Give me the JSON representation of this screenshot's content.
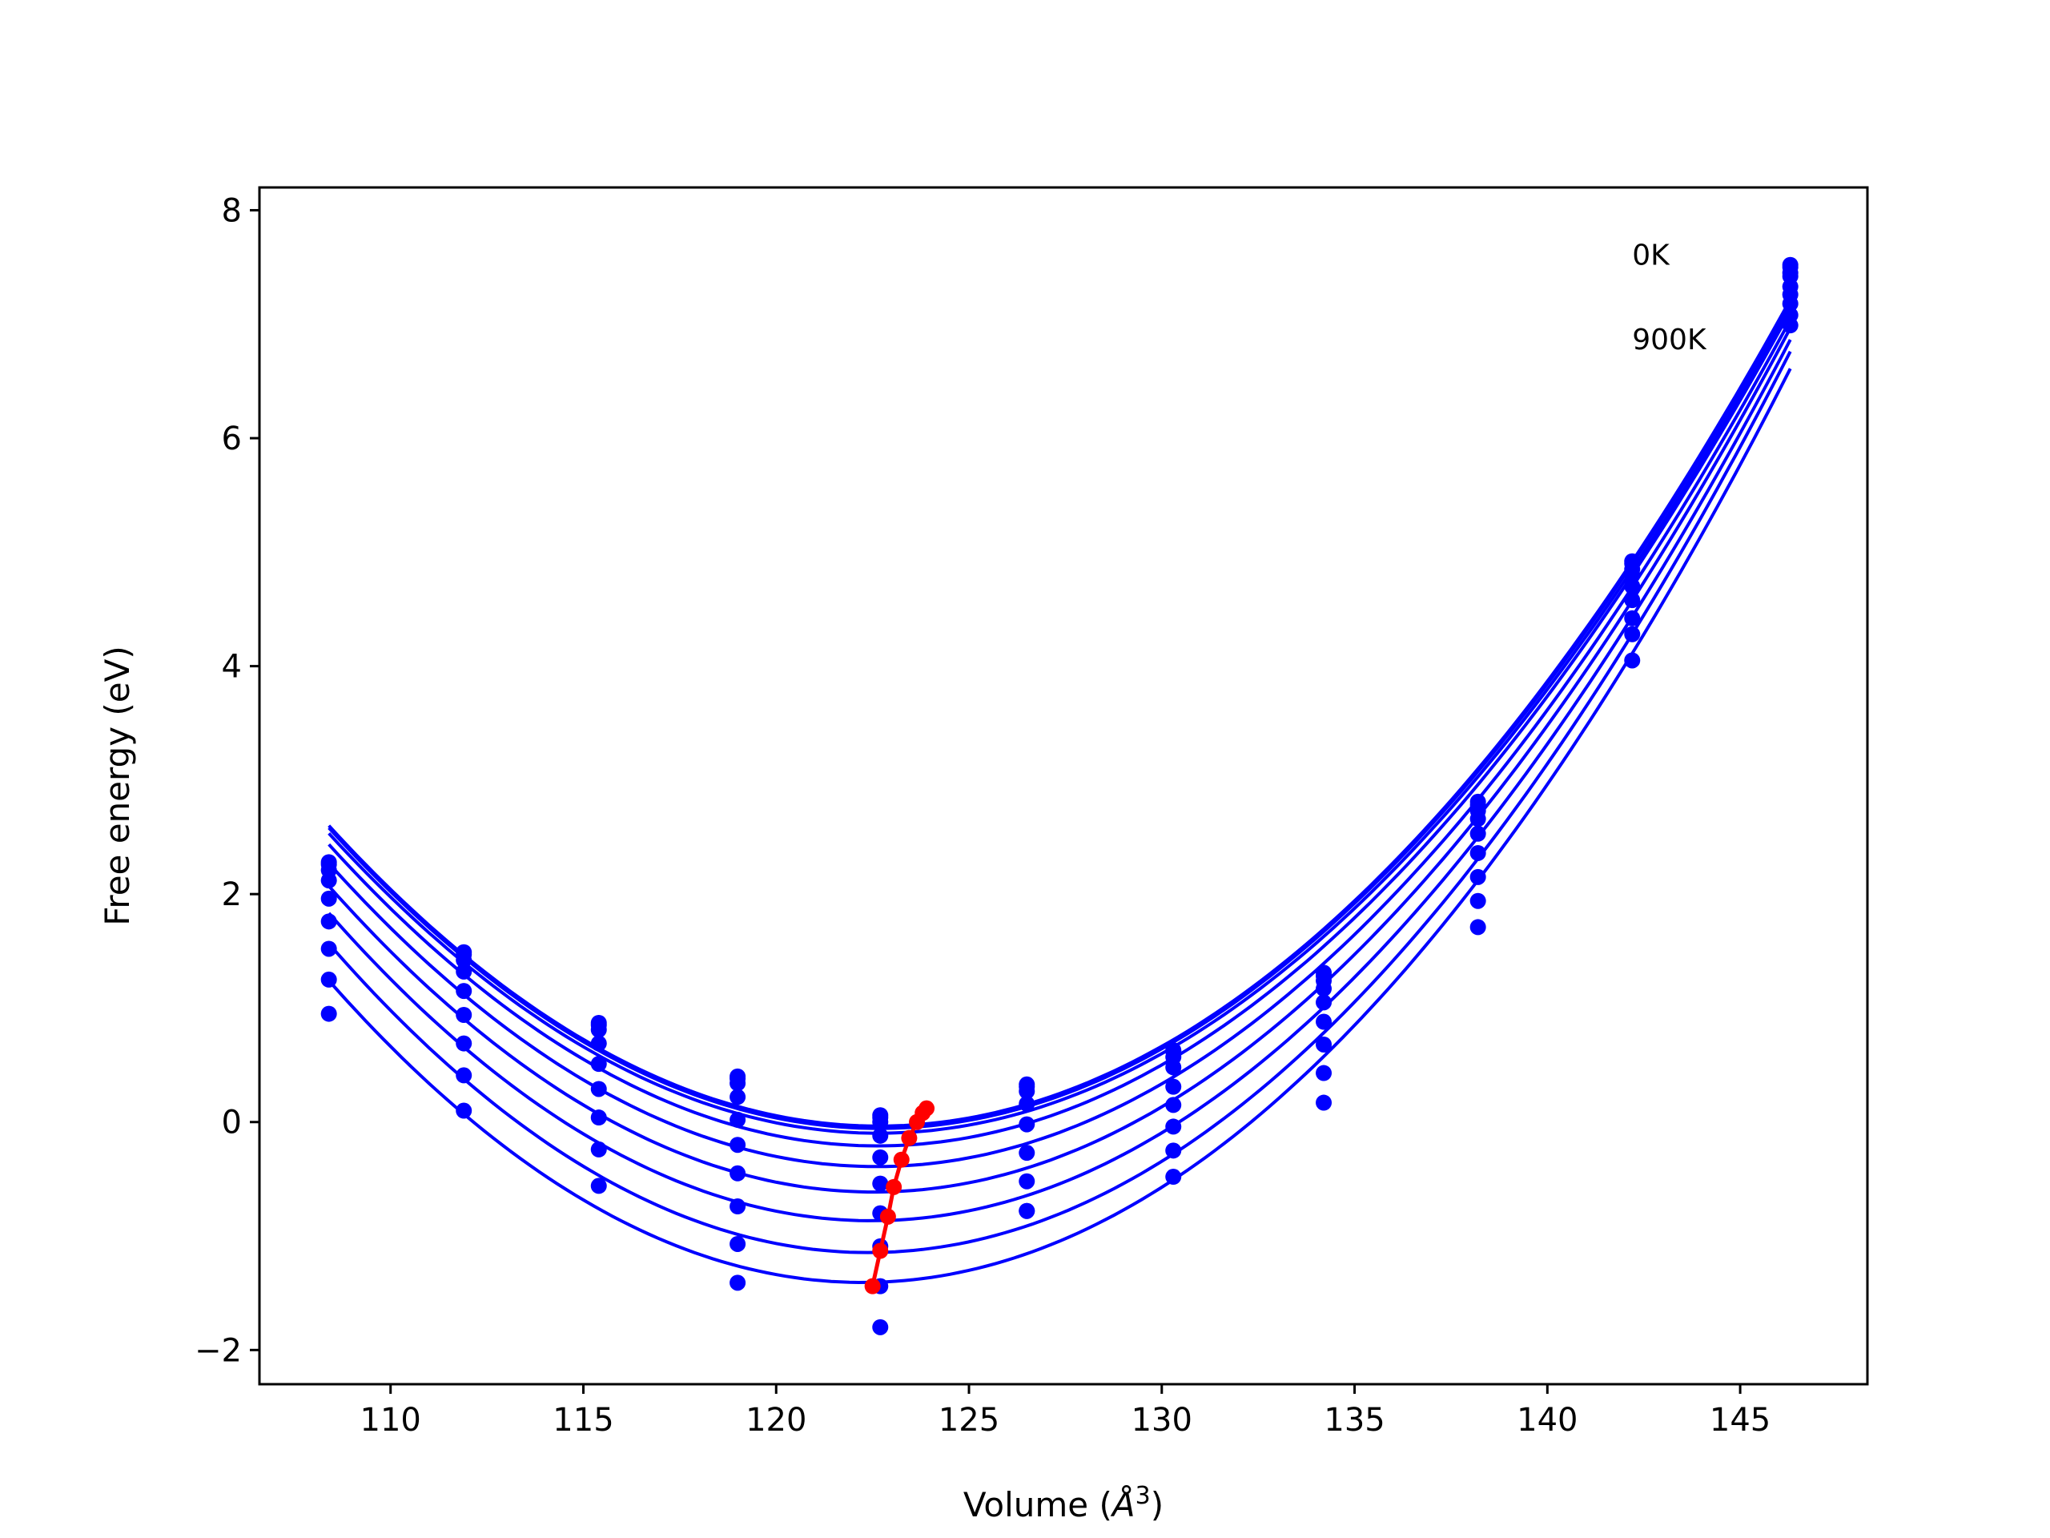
{
  "chart_data": {
    "type": "line",
    "xlabel_prefix": "Volume (",
    "xlabel_unit": "Å",
    "xlabel_exp": "3",
    "xlabel_suffix": ")",
    "ylabel": "Free energy (eV)",
    "xlim": [
      106.6,
      148.3
    ],
    "ylim": [
      -2.3,
      8.2
    ],
    "xticks": [
      110,
      115,
      120,
      125,
      130,
      135,
      140,
      145
    ],
    "yticks": [
      -2,
      0,
      2,
      4,
      6,
      8
    ],
    "ytick_labels": [
      "−2",
      "0",
      "2",
      "4",
      "6",
      "8"
    ],
    "annotations": [
      {
        "text": "0K",
        "x": 142.2,
        "y": 7.62
      },
      {
        "text": "900K",
        "x": 142.2,
        "y": 6.88
      }
    ],
    "curve_color": "#0000ff",
    "minima_color": "#ff0000",
    "volumes": [
      108.4,
      111.9,
      115.4,
      119.0,
      122.7,
      126.5,
      130.3,
      134.2,
      138.2,
      142.2,
      146.3
    ],
    "series": [
      {
        "values": [
          2.28,
          1.49,
          0.87,
          0.4,
          0.06,
          0.33,
          0.63,
          1.31,
          2.81,
          4.92,
          7.52
        ]
      },
      {
        "values": [
          2.26,
          1.47,
          0.85,
          0.38,
          0.04,
          0.31,
          0.62,
          1.28,
          2.78,
          4.9,
          7.5
        ]
      },
      {
        "values": [
          2.21,
          1.42,
          0.81,
          0.34,
          0.0,
          0.27,
          0.57,
          1.24,
          2.73,
          4.85,
          7.45
        ]
      },
      {
        "values": [
          2.12,
          1.32,
          0.69,
          0.22,
          -0.12,
          0.16,
          0.48,
          1.17,
          2.66,
          4.8,
          7.42
        ]
      },
      {
        "values": [
          1.96,
          1.15,
          0.51,
          0.02,
          -0.31,
          -0.02,
          0.31,
          1.05,
          2.53,
          4.7,
          7.33
        ]
      },
      {
        "values": [
          1.76,
          0.94,
          0.29,
          -0.2,
          -0.54,
          -0.27,
          0.15,
          0.88,
          2.36,
          4.58,
          7.26
        ]
      },
      {
        "values": [
          1.52,
          0.69,
          0.04,
          -0.45,
          -0.8,
          -0.52,
          -0.04,
          0.68,
          2.15,
          4.42,
          7.18
        ]
      },
      {
        "values": [
          1.25,
          0.41,
          -0.24,
          -0.74,
          -1.09,
          -0.78,
          -0.25,
          0.43,
          1.94,
          4.28,
          7.08
        ]
      },
      {
        "values": [
          0.95,
          0.1,
          -0.56,
          -1.07,
          -1.44,
          -0.78,
          -0.48,
          0.17,
          1.71,
          4.05,
          6.99
        ]
      }
    ],
    "minima": {
      "x": [
        122.5,
        122.7,
        122.9,
        123.05,
        123.25,
        123.45,
        123.65,
        123.8,
        123.9
      ],
      "y": [
        -1.44,
        -1.13,
        -0.83,
        -0.57,
        -0.33,
        -0.14,
        0.0,
        0.08,
        0.12
      ]
    },
    "extra_points": [
      {
        "x": 119.0,
        "y": -1.41
      },
      {
        "x": 122.7,
        "y": -1.8
      }
    ]
  }
}
